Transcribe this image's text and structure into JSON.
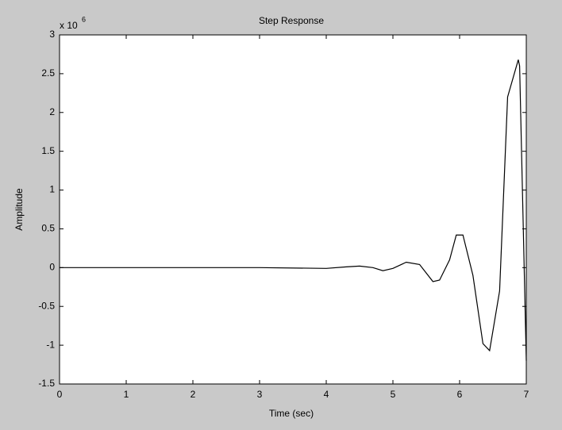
{
  "chart_data": {
    "type": "line",
    "title": "Step Response",
    "x_label": "Time (sec)",
    "y_label": "Amplitude",
    "y_multiplier": {
      "base": "x 10",
      "exponent": "6"
    },
    "x": [
      0,
      1,
      2,
      3,
      4.0,
      4.3,
      4.5,
      4.7,
      4.85,
      5.0,
      5.2,
      5.4,
      5.6,
      5.7,
      5.85,
      5.95,
      6.05,
      6.2,
      6.35,
      6.45,
      6.6,
      6.72,
      6.88,
      6.9,
      7.0
    ],
    "values": [
      0,
      0,
      0,
      0,
      -0.01,
      0.01,
      0.02,
      0,
      -0.04,
      -0.01,
      0.07,
      0.04,
      -0.18,
      -0.16,
      0.1,
      0.42,
      0.42,
      -0.1,
      -0.98,
      -1.07,
      -0.3,
      2.2,
      2.68,
      2.6,
      -1.2
    ],
    "color": "#000000",
    "xlim": [
      0,
      7
    ],
    "xticks": [
      0,
      1,
      2,
      3,
      4,
      5,
      6,
      7
    ],
    "ylim": [
      -1.5,
      3
    ],
    "yticks": [
      -1.5,
      -1,
      -0.5,
      0,
      0.5,
      1,
      1.5,
      2,
      2.5,
      3
    ],
    "grid": false
  }
}
